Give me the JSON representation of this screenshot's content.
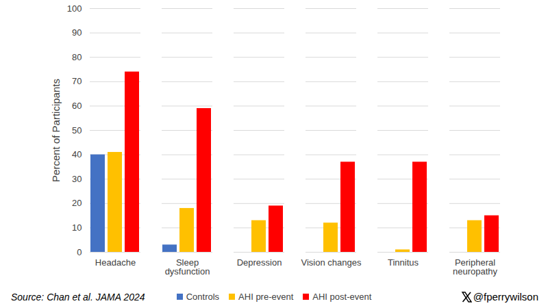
{
  "chart_data": {
    "type": "bar",
    "categories": [
      "Headache",
      "Sleep dysfunction",
      "Depression",
      "Vision changes",
      "Tinnitus",
      "Peripheral neuropathy"
    ],
    "series": [
      {
        "name": "Controls",
        "color": "#4472c4",
        "values": [
          40,
          3,
          0,
          0,
          0,
          0
        ]
      },
      {
        "name": "AHI pre-event",
        "color": "#ffc000",
        "values": [
          41,
          18,
          13,
          12,
          1,
          13
        ]
      },
      {
        "name": "AHI post-event",
        "color": "#ff0000",
        "values": [
          74,
          59,
          19,
          37,
          37,
          15
        ]
      }
    ],
    "y_label": "Percent of Participants",
    "ylim": [
      0,
      100
    ],
    "yticks": [
      0,
      10,
      20,
      30,
      40,
      50,
      60,
      70,
      80,
      90,
      100
    ],
    "grid": true,
    "legend": "bottom",
    "annotations": [
      "Source: Chan et al. JAMA 2024",
      "@fperrywilson"
    ]
  }
}
